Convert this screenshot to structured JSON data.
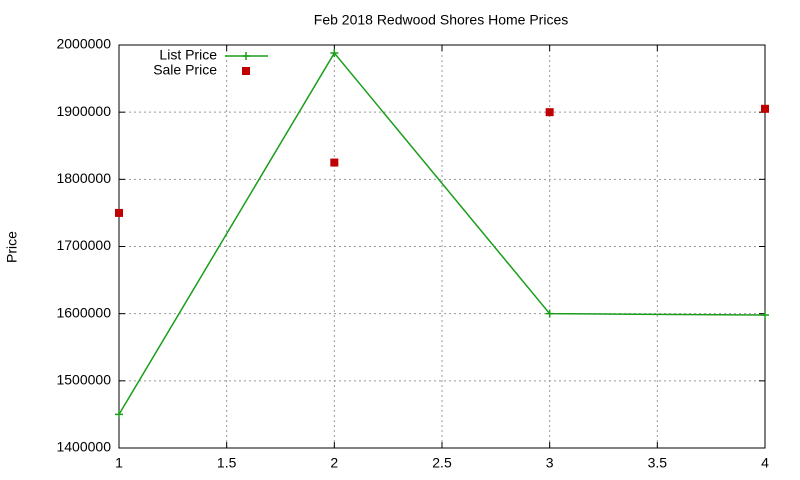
{
  "chart_data": {
    "type": "line",
    "title": "Feb 2018 Redwood Shores Home Prices",
    "y_label": "Price",
    "x": [
      1,
      2,
      3,
      4
    ],
    "series": [
      {
        "name": "List Price",
        "color": "#1a9e1a",
        "style": "linespoints",
        "values": [
          1450000,
          1988000,
          1600000,
          1598000
        ]
      },
      {
        "name": "Sale Price",
        "color": "#c00000",
        "style": "points",
        "values": [
          1750000,
          1825000,
          1900000,
          1905000
        ]
      }
    ],
    "xlim": [
      1,
      4
    ],
    "xticks": [
      1,
      1.5,
      2,
      2.5,
      3,
      3.5,
      4
    ],
    "ylim": [
      1400000,
      2000000
    ],
    "yticks": [
      1400000,
      1500000,
      1600000,
      1700000,
      1800000,
      1900000,
      2000000
    ],
    "grid": true,
    "legend": "top-left"
  }
}
